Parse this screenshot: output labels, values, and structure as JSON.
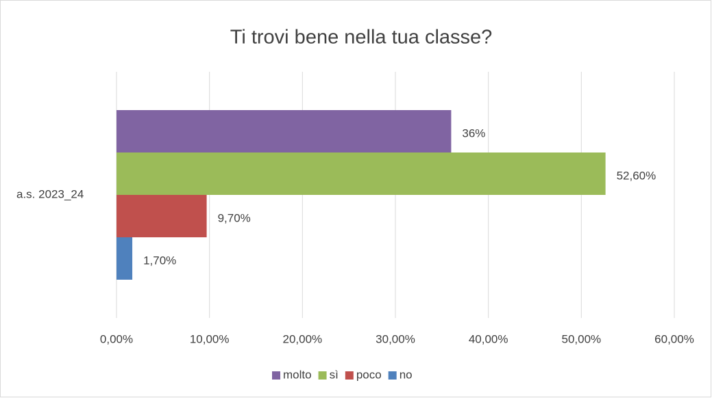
{
  "chart_data": {
    "type": "hbar",
    "title": "Ti trovi bene nella tua classe?",
    "categories": [
      "a.s. 2023_24"
    ],
    "series": [
      {
        "name": "molto",
        "color": "#8064a2",
        "values": [
          36
        ],
        "value_labels": [
          "36%"
        ]
      },
      {
        "name": "sì",
        "color": "#9bbb59",
        "values": [
          52.6
        ],
        "value_labels": [
          "52,60%"
        ]
      },
      {
        "name": "poco",
        "color": "#c0504d",
        "values": [
          9.7
        ],
        "value_labels": [
          "9,70%"
        ]
      },
      {
        "name": "no",
        "color": "#4f81bd",
        "values": [
          1.7
        ],
        "value_labels": [
          "1,70%"
        ]
      }
    ],
    "xlim": [
      0,
      60
    ],
    "xticks": [
      {
        "value": 0,
        "label": "0,00%"
      },
      {
        "value": 10,
        "label": "10,00%"
      },
      {
        "value": 20,
        "label": "20,00%"
      },
      {
        "value": 30,
        "label": "30,00%"
      },
      {
        "value": 40,
        "label": "40,00%"
      },
      {
        "value": 50,
        "label": "50,00%"
      },
      {
        "value": 60,
        "label": "60,00%"
      }
    ],
    "grid": true,
    "legend": "bottom"
  }
}
